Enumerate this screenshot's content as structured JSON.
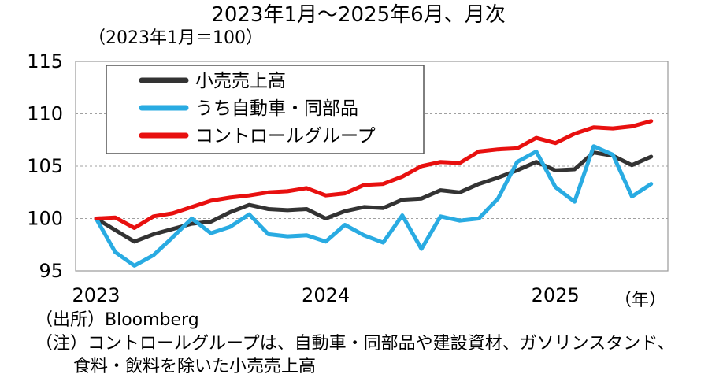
{
  "chart_data": {
    "type": "line",
    "title": "2023年1月～2025年6月、月次",
    "ylabel": "（2023年1月＝100）",
    "xunit": "（年）",
    "ylim": [
      95,
      115
    ],
    "yticks": [
      95,
      100,
      105,
      110,
      115
    ],
    "x_labels": [
      "2023",
      "2024",
      "2025"
    ],
    "x_label_months": [
      1,
      13,
      25
    ],
    "months": 30,
    "series": [
      {
        "name": "小売売上高",
        "color": "#333333",
        "values": [
          100.0,
          98.9,
          97.8,
          98.5,
          99.0,
          99.5,
          99.7,
          100.6,
          101.3,
          100.9,
          100.8,
          100.9,
          100.0,
          100.7,
          101.1,
          101.0,
          101.8,
          101.9,
          102.7,
          102.5,
          103.3,
          103.9,
          104.6,
          105.4,
          104.6,
          104.7,
          106.3,
          106.0,
          105.1,
          105.9
        ]
      },
      {
        "name": "うち自動車・同部品",
        "color": "#29ABE2",
        "values": [
          100.0,
          96.8,
          95.5,
          96.5,
          98.2,
          100.0,
          98.6,
          99.2,
          100.4,
          98.5,
          98.3,
          98.4,
          97.8,
          99.4,
          98.4,
          97.7,
          100.3,
          97.1,
          100.2,
          99.8,
          100.0,
          101.9,
          105.4,
          106.4,
          103.0,
          101.6,
          106.9,
          106.1,
          102.1,
          103.3
        ]
      },
      {
        "name": "コントロールグループ",
        "color": "#E8100F",
        "values": [
          100.0,
          100.1,
          99.1,
          100.2,
          100.5,
          101.1,
          101.7,
          102.0,
          102.2,
          102.5,
          102.6,
          102.9,
          102.2,
          102.4,
          103.2,
          103.3,
          104.0,
          105.0,
          105.4,
          105.3,
          106.4,
          106.6,
          106.7,
          107.7,
          107.2,
          108.1,
          108.7,
          108.6,
          108.8,
          109.3
        ]
      }
    ],
    "legend_position": "top-left",
    "grid": "dashed horizontal"
  },
  "notes": {
    "source": "（出所）Bloomberg",
    "note_line1": "（注）コントロールグループは、自動車・同部品や建設資材、ガソリンスタンド、",
    "note_line2": "食料・飲料を除いた小売売上高"
  }
}
